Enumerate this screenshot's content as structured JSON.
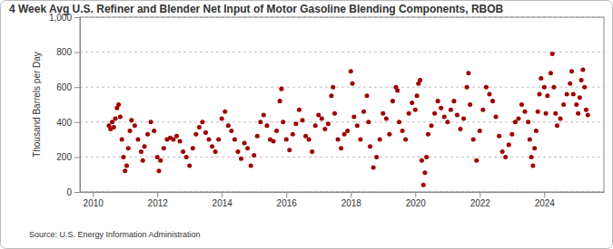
{
  "chart_data": {
    "type": "scatter",
    "title": "4 Week Avg U.S. Refiner and Blender Net Input of Motor Gasoline Blending Components, RBOB",
    "y_label": "Thousand Barrels per Day",
    "source": "Source: U.S. Energy Information Administration",
    "color": "#a00000",
    "marker": "circle",
    "grid": true,
    "xlim": [
      2009.6,
      2025.85
    ],
    "xticks": [
      2010,
      2012,
      2014,
      2016,
      2018,
      2020,
      2022,
      2024
    ],
    "ylim": [
      0,
      1000
    ],
    "yticks": [
      0,
      200,
      400,
      600,
      800,
      {
        "value": 1000,
        "label": "1,000"
      }
    ],
    "x": [
      2010.5,
      2010.55,
      2010.6,
      2010.65,
      2010.7,
      2010.75,
      2010.8,
      2010.85,
      2010.9,
      2010.95,
      2011.0,
      2011.05,
      2011.1,
      2011.15,
      2011.2,
      2011.3,
      2011.4,
      2011.5,
      2011.55,
      2011.6,
      2011.7,
      2011.8,
      2011.9,
      2012.0,
      2012.05,
      2012.1,
      2012.2,
      2012.3,
      2012.4,
      2012.5,
      2012.6,
      2012.7,
      2012.8,
      2012.9,
      2013.0,
      2013.1,
      2013.2,
      2013.3,
      2013.4,
      2013.5,
      2013.6,
      2013.7,
      2013.8,
      2013.9,
      2014.0,
      2014.1,
      2014.2,
      2014.3,
      2014.4,
      2014.5,
      2014.6,
      2014.7,
      2014.8,
      2014.9,
      2015.0,
      2015.1,
      2015.2,
      2015.3,
      2015.4,
      2015.5,
      2015.6,
      2015.7,
      2015.8,
      2015.85,
      2015.9,
      2016.0,
      2016.1,
      2016.2,
      2016.3,
      2016.4,
      2016.5,
      2016.6,
      2016.7,
      2016.8,
      2016.9,
      2017.0,
      2017.1,
      2017.2,
      2017.3,
      2017.4,
      2017.45,
      2017.5,
      2017.6,
      2017.7,
      2017.8,
      2017.9,
      2018.0,
      2018.05,
      2018.1,
      2018.2,
      2018.3,
      2018.4,
      2018.5,
      2018.55,
      2018.6,
      2018.7,
      2018.8,
      2018.9,
      2019.0,
      2019.1,
      2019.2,
      2019.3,
      2019.4,
      2019.45,
      2019.5,
      2019.6,
      2019.7,
      2019.8,
      2019.9,
      2020.0,
      2020.05,
      2020.1,
      2020.15,
      2020.2,
      2020.25,
      2020.3,
      2020.35,
      2020.4,
      2020.5,
      2020.6,
      2020.7,
      2020.8,
      2020.9,
      2021.0,
      2021.1,
      2021.2,
      2021.3,
      2021.4,
      2021.5,
      2021.6,
      2021.65,
      2021.7,
      2021.8,
      2021.9,
      2022.0,
      2022.1,
      2022.2,
      2022.3,
      2022.4,
      2022.5,
      2022.6,
      2022.7,
      2022.8,
      2022.9,
      2023.0,
      2023.1,
      2023.2,
      2023.3,
      2023.4,
      2023.5,
      2023.55,
      2023.6,
      2023.65,
      2023.7,
      2023.75,
      2023.8,
      2023.85,
      2023.9,
      2024.0,
      2024.05,
      2024.1,
      2024.2,
      2024.25,
      2024.3,
      2024.35,
      2024.4,
      2024.5,
      2024.6,
      2024.7,
      2024.8,
      2024.85,
      2024.9,
      2025.0,
      2025.05,
      2025.1,
      2025.15,
      2025.2,
      2025.25,
      2025.3,
      2025.35
    ],
    "values": [
      380,
      360,
      400,
      370,
      420,
      480,
      500,
      430,
      300,
      200,
      120,
      150,
      250,
      350,
      410,
      380,
      300,
      230,
      180,
      260,
      330,
      400,
      350,
      200,
      120,
      180,
      250,
      300,
      310,
      300,
      320,
      290,
      230,
      200,
      150,
      250,
      330,
      370,
      400,
      340,
      300,
      260,
      230,
      300,
      420,
      460,
      380,
      350,
      300,
      230,
      190,
      280,
      250,
      150,
      210,
      320,
      400,
      440,
      380,
      300,
      290,
      350,
      520,
      590,
      400,
      300,
      240,
      330,
      390,
      470,
      410,
      320,
      300,
      230,
      380,
      440,
      420,
      360,
      390,
      550,
      600,
      450,
      300,
      250,
      330,
      350,
      690,
      620,
      430,
      380,
      300,
      460,
      550,
      400,
      260,
      140,
      200,
      300,
      450,
      420,
      330,
      520,
      600,
      580,
      400,
      350,
      300,
      450,
      510,
      470,
      550,
      620,
      640,
      180,
      40,
      110,
      200,
      330,
      380,
      450,
      520,
      480,
      430,
      400,
      470,
      520,
      440,
      360,
      420,
      600,
      680,
      500,
      300,
      180,
      350,
      470,
      600,
      560,
      520,
      430,
      320,
      230,
      200,
      270,
      330,
      400,
      420,
      500,
      460,
      400,
      300,
      200,
      150,
      250,
      350,
      460,
      560,
      650,
      600,
      450,
      550,
      680,
      790,
      600,
      450,
      380,
      420,
      500,
      560,
      620,
      690,
      560,
      500,
      450,
      540,
      640,
      700,
      600,
      470,
      440
    ]
  }
}
